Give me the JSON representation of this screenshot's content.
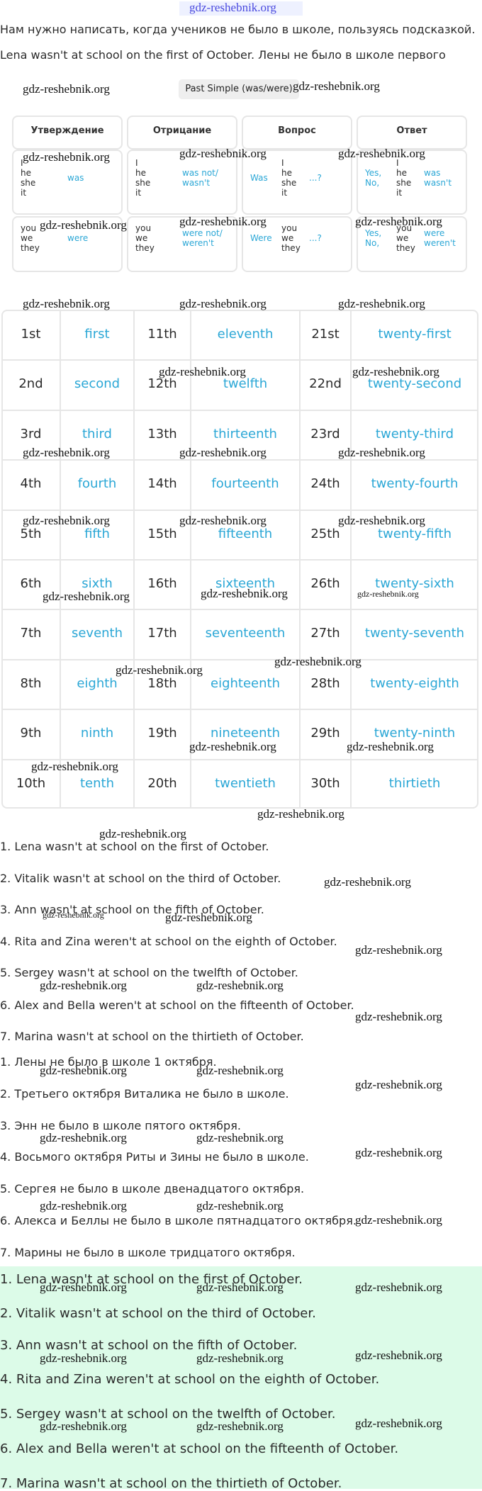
{
  "header": {
    "link": "gdz-reshebnik.org",
    "watermark": "gdz-reshebnik.org"
  },
  "intro": "Нам нужно написать, когда учеников не было в школе, пользуясь подсказкой.",
  "example": "Lena wasn't at school on the first of October. Лены не было в школе первого",
  "badge": "Past Simple (was/were)",
  "grammar": {
    "headers": [
      "Утверждение",
      "Отрицание",
      "Вопрос",
      "Ответ"
    ],
    "rows": [
      [
        {
          "pron": [
            "I",
            "he",
            "she",
            "it"
          ],
          "right": [
            "was"
          ]
        },
        {
          "pron": [
            "I",
            "he",
            "she",
            "it"
          ],
          "right": [
            "was not/",
            "wasn't"
          ]
        },
        {
          "left": [
            "Was"
          ],
          "pron": [
            "I",
            "he",
            "she",
            "it"
          ],
          "right": [
            "...?"
          ]
        },
        {
          "left": [
            "Yes,",
            "No,"
          ],
          "pron": [
            "I",
            "he",
            "she",
            "it"
          ],
          "right": [
            "was",
            "wasn't"
          ]
        }
      ],
      [
        {
          "pron": [
            "you",
            "we",
            "they"
          ],
          "right": [
            "were"
          ]
        },
        {
          "pron": [
            "you",
            "we",
            "they"
          ],
          "right": [
            "were not/",
            "weren't"
          ]
        },
        {
          "left": [
            "Were"
          ],
          "pron": [
            "you",
            "we",
            "they"
          ],
          "right": [
            "...?"
          ]
        },
        {
          "left": [
            "Yes,",
            "No,"
          ],
          "pron": [
            "you",
            "we",
            "they"
          ],
          "right": [
            "were",
            "weren't"
          ]
        }
      ]
    ]
  },
  "ordinals": {
    "rows": [
      [
        "1st",
        "first",
        "11th",
        "eleventh",
        "21st",
        "twenty-first"
      ],
      [
        "2nd",
        "second",
        "12th",
        "twelfth",
        "22nd",
        "twenty-second"
      ],
      [
        "3rd",
        "third",
        "13th",
        "thirteenth",
        "23rd",
        "twenty-third"
      ],
      [
        "4th",
        "fourth",
        "14th",
        "fourteenth",
        "24th",
        "twenty-fourth"
      ],
      [
        "5th",
        "fifth",
        "15th",
        "fifteenth",
        "25th",
        "twenty-fifth"
      ],
      [
        "6th",
        "sixth",
        "16th",
        "sixteenth",
        "26th",
        "twenty-sixth"
      ],
      [
        "7th",
        "seventh",
        "17th",
        "seventeenth",
        "27th",
        "twenty-seventh"
      ],
      [
        "8th",
        "eighth",
        "18th",
        "eighteenth",
        "28th",
        "twenty-eighth"
      ],
      [
        "9th",
        "ninth",
        "19th",
        "nineteenth",
        "29th",
        "twenty-ninth"
      ],
      [
        "10th",
        "tenth",
        "20th",
        "twentieth",
        "30th",
        "thirtieth"
      ]
    ]
  },
  "english": [
    "1. Lena wasn't at school on the first of October.",
    "2. Vitalik wasn't at school on the third of October.",
    "3. Ann wasn't at school on the fifth of October.",
    "4. Rita and Zina weren't at school on the eighth of October.",
    "5. Sergey wasn't at school on the twelfth of October.",
    "6. Alex and Bella weren't at school on the fifteenth of October.",
    "7. Marina wasn't at school on the thirtieth of October."
  ],
  "russian": [
    "1. Лены не было в школе 1 октября.",
    "2. Третьего октября Виталика не было в школе.",
    "3. Энн не было в школе пятого октября.",
    "4. Восьмого октября Риты и Зины не было в школе.",
    "5. Сергея не было в школе двенадцатого октября.",
    "6. Алекса и Беллы не было в школе пятнадцатого октября.",
    "7. Марины не было в школе тридцатого октября."
  ],
  "answer": [
    "1. Lena wasn't at school on the first of October.",
    "2. Vitalik wasn't at school on the third of October.",
    "3. Ann wasn't at school on the fifth of October.",
    "4. Rita and Zina weren't at school on the eighth of October.",
    "5. Sergey wasn't at school on the twelfth of October.",
    "6. Alex and Bella weren't at school on the fifteenth of October.",
    "7. Marina wasn't at school on the thirtieth of October."
  ]
}
